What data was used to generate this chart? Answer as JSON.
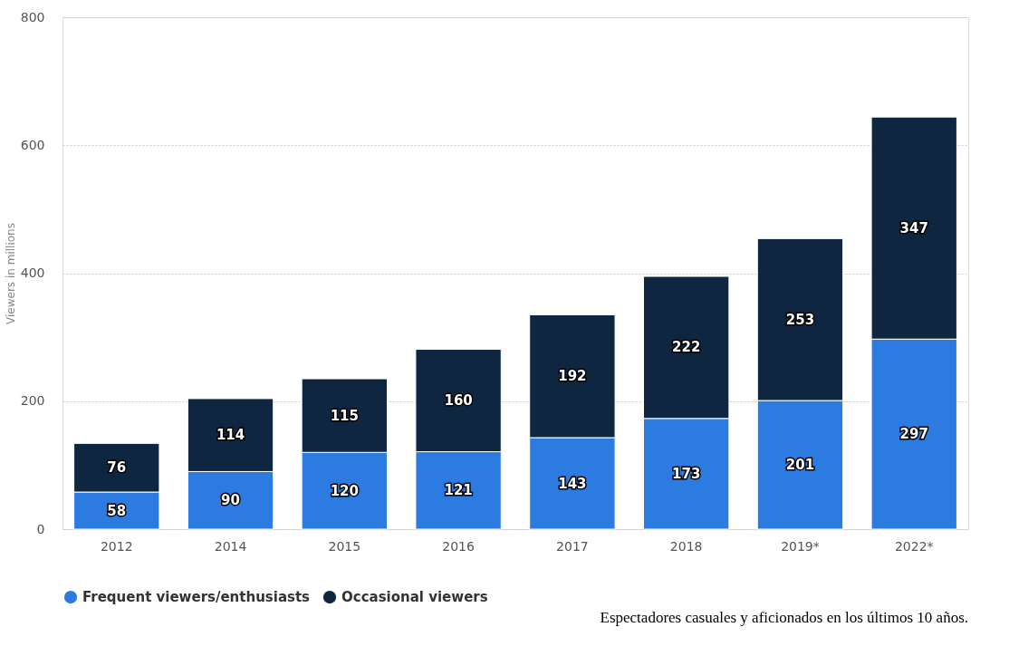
{
  "chart_data": {
    "type": "bar",
    "stacked": true,
    "ylabel": "Viewers in millions",
    "categories": [
      "2012",
      "2014",
      "2015",
      "2016",
      "2017",
      "2018",
      "2019*",
      "2022*"
    ],
    "series": [
      {
        "name": "Frequent viewers/enthusiasts",
        "color": "#2c7be0",
        "values": [
          58,
          90,
          120,
          121,
          143,
          173,
          201,
          297
        ]
      },
      {
        "name": "Occasional viewers",
        "color": "#0f2640",
        "values": [
          76,
          114,
          115,
          160,
          192,
          222,
          253,
          347
        ]
      }
    ],
    "ylim": [
      0,
      800
    ],
    "yticks": [
      0,
      200,
      400,
      600,
      800
    ],
    "grid": "y",
    "legend": "bottom",
    "data_labels": true,
    "annotations": [
      "Espectadores casuales y aficionados en los últimos 10 años."
    ]
  }
}
